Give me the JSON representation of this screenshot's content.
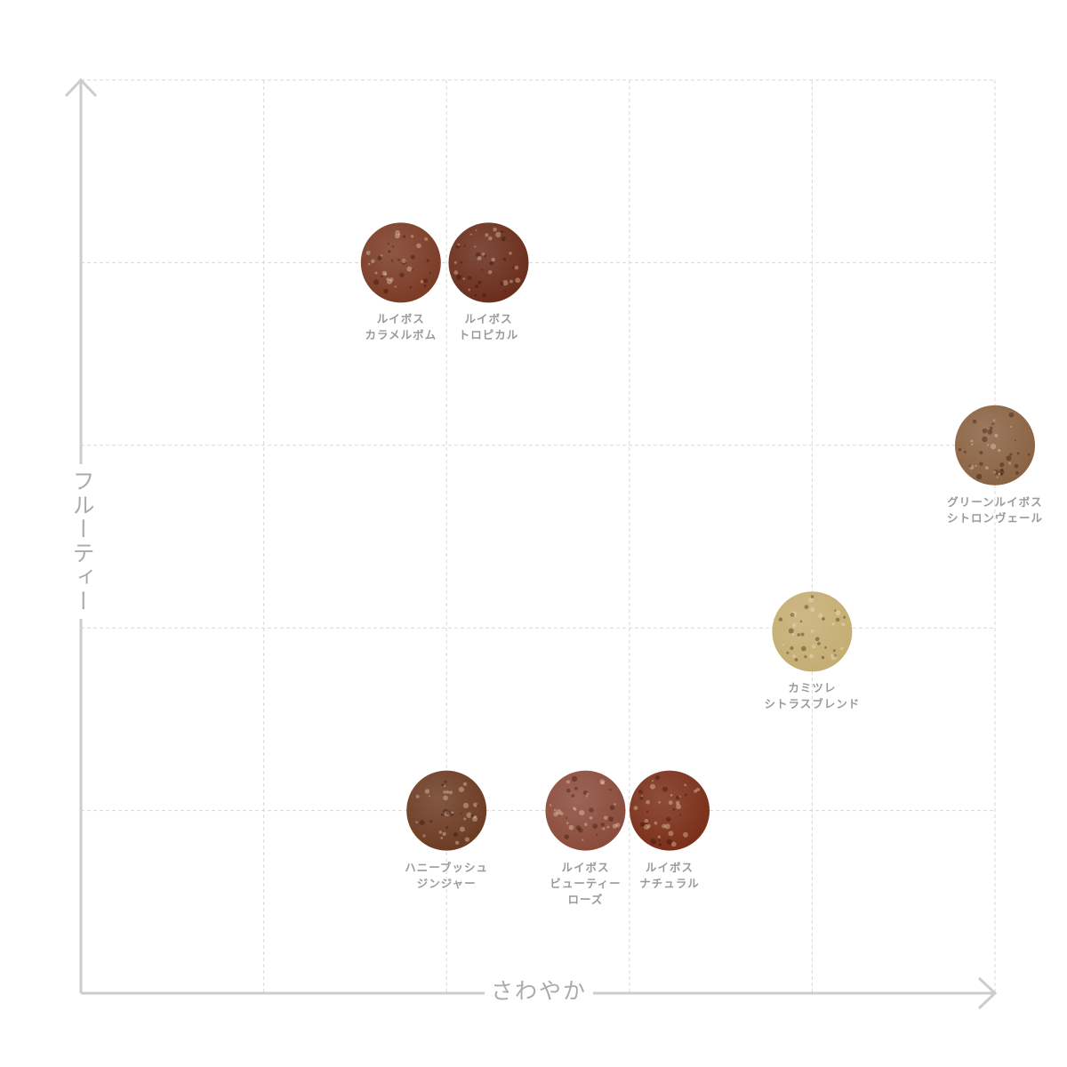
{
  "chart_data": {
    "type": "scatter",
    "xlabel": "さわやか",
    "ylabel": "フルーティー",
    "xlim": [
      0,
      5
    ],
    "ylim": [
      0,
      5
    ],
    "grid": true,
    "points": [
      {
        "lines": [
          "ルイボス",
          "カラメルボム"
        ],
        "x": 1.75,
        "y": 4.0,
        "color": "#7a3a24"
      },
      {
        "lines": [
          "ルイボス",
          "トロピカル"
        ],
        "x": 2.23,
        "y": 4.0,
        "color": "#6a2c1a"
      },
      {
        "lines": [
          "グリーンルイボス",
          "シトロンヴェール"
        ],
        "x": 5.0,
        "y": 3.0,
        "color": "#8a6242"
      },
      {
        "lines": [
          "カミツレ",
          "シトラスブレンド"
        ],
        "x": 4.0,
        "y": 1.98,
        "color": "#c4ad72"
      },
      {
        "lines": [
          "ハニーブッシュ",
          "ジンジャー"
        ],
        "x": 2.0,
        "y": 1.0,
        "color": "#6c3a22"
      },
      {
        "lines": [
          "ルイボス",
          "ビューティー",
          "ローズ"
        ],
        "x": 2.76,
        "y": 1.0,
        "color": "#8a4a3a"
      },
      {
        "lines": [
          "ルイボス",
          "ナチュラル"
        ],
        "x": 3.22,
        "y": 1.0,
        "color": "#7a2e18"
      }
    ]
  },
  "colors": {
    "axis": "#cccccc",
    "grid": "#d8d8d8",
    "label": "#9a9a9a"
  }
}
